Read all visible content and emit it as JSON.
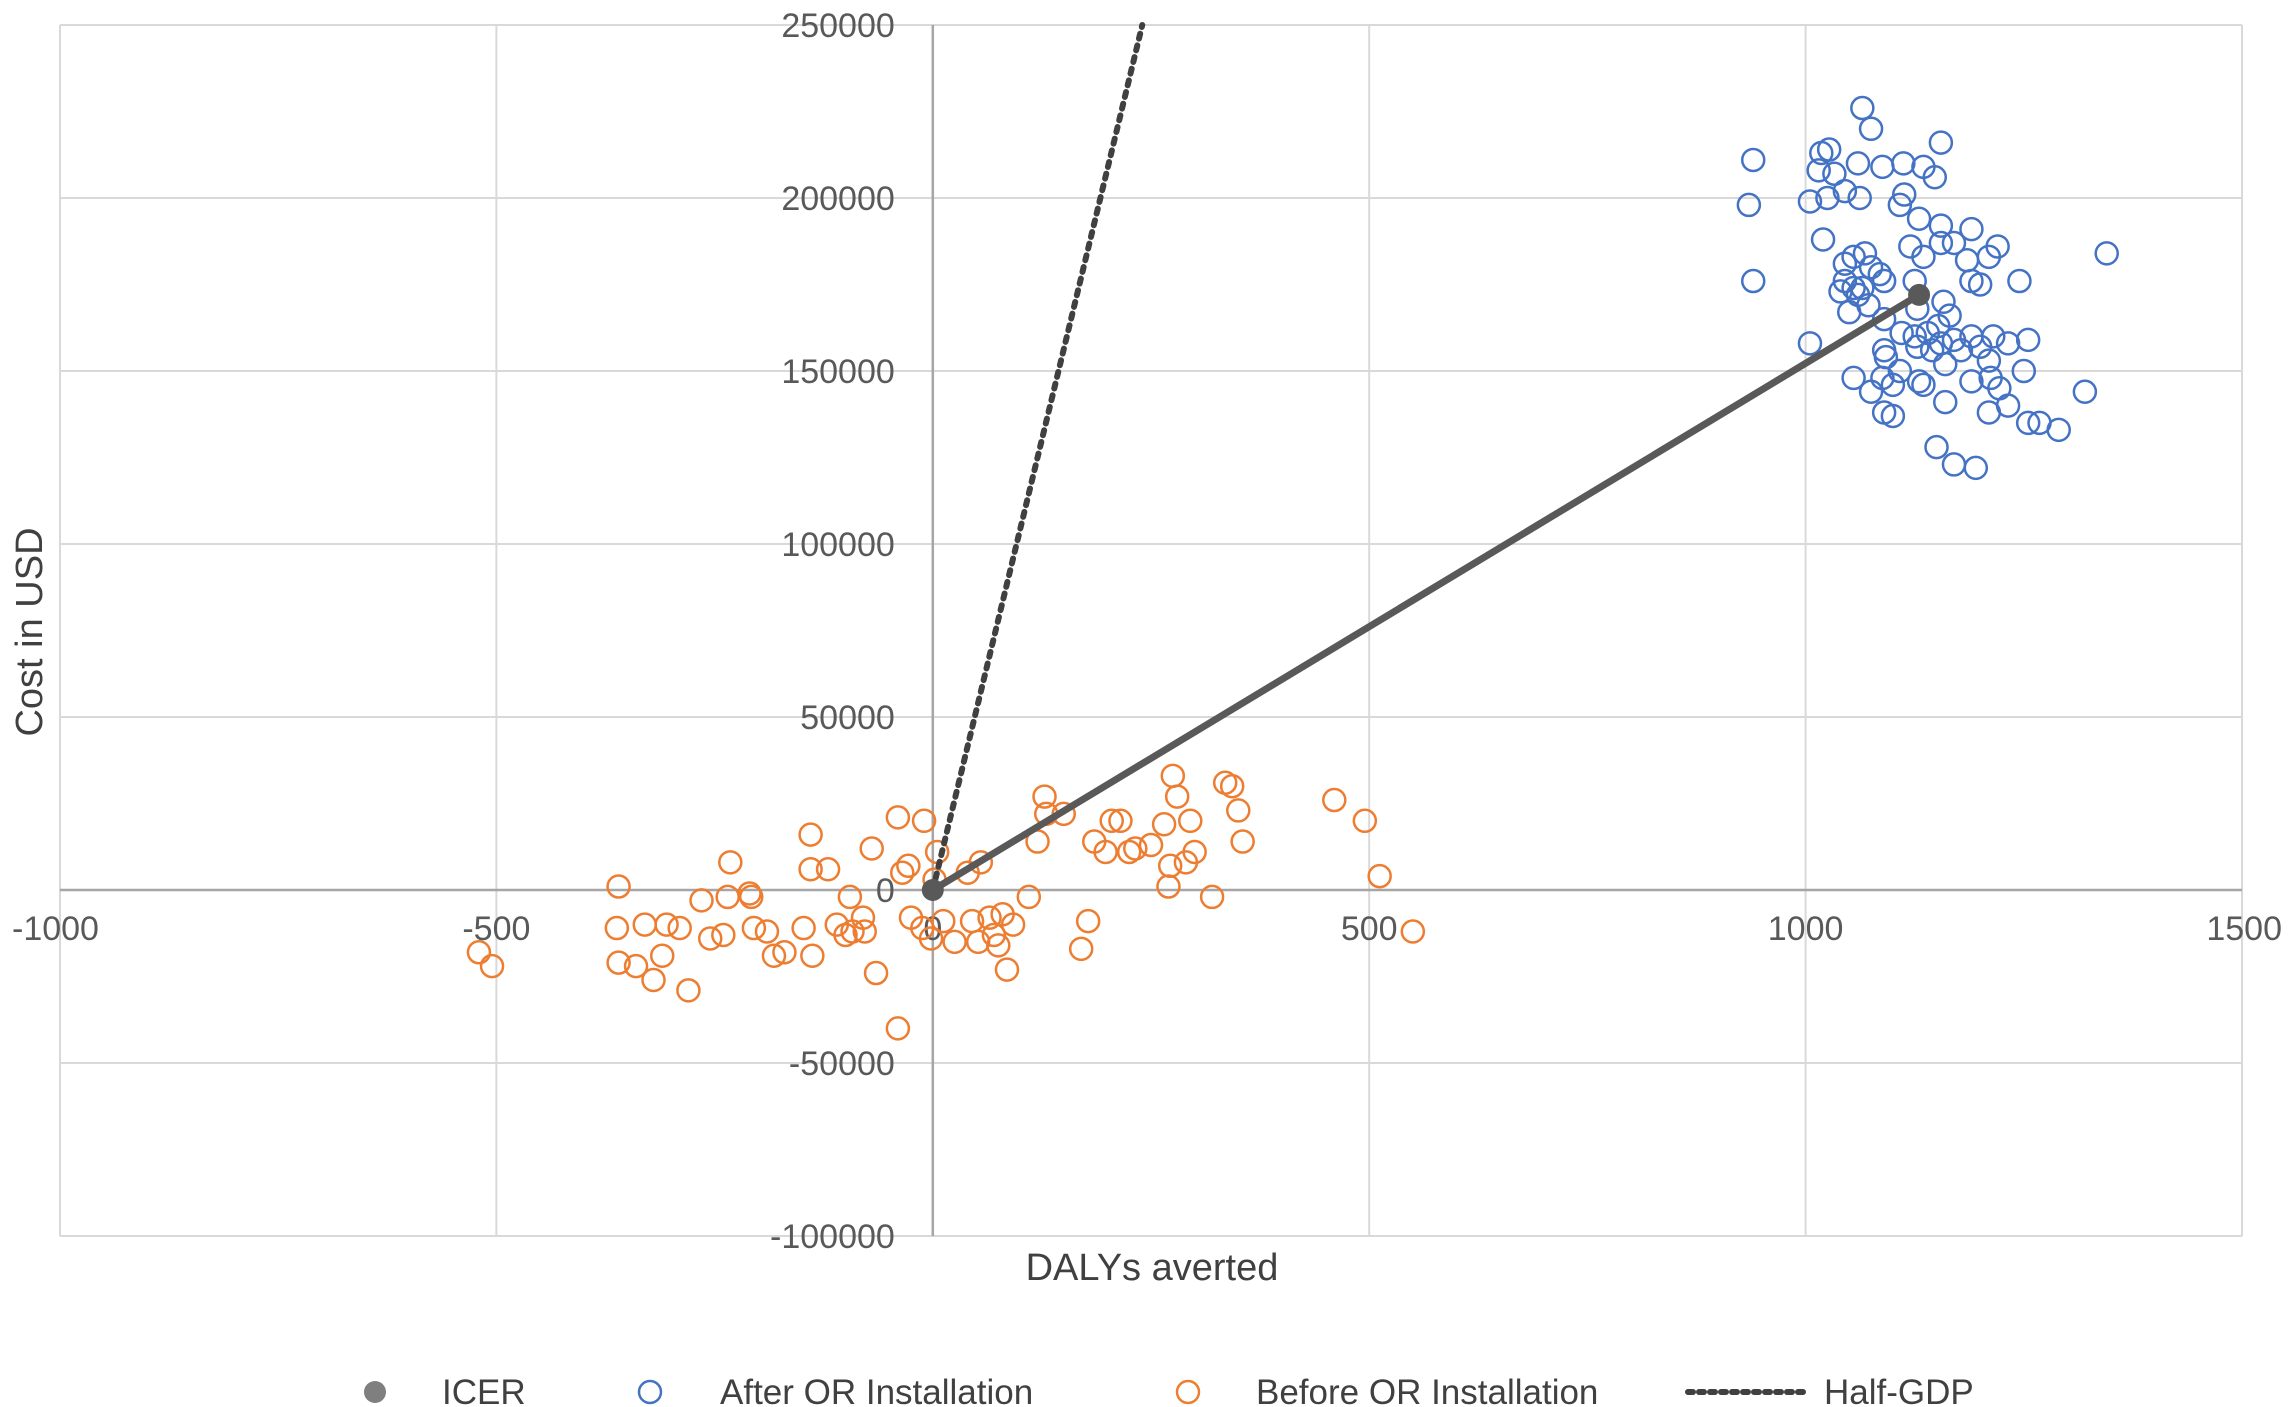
{
  "chart_data": {
    "type": "scatter",
    "title": "",
    "xlabel": "DALYs averted",
    "ylabel": "Cost in USD",
    "xlim": [
      -1000,
      1500
    ],
    "ylim": [
      -100000,
      250000
    ],
    "x_ticks": [
      -1000,
      -500,
      0,
      500,
      1000,
      1500
    ],
    "y_ticks": [
      -100000,
      -50000,
      0,
      50000,
      100000,
      150000,
      200000,
      250000
    ],
    "x_tick_labels": [
      "-1000",
      "-500",
      "0",
      "500",
      "1000",
      "1500"
    ],
    "y_tick_labels": [
      "-100000",
      "-50000",
      "0",
      "50000",
      "100000",
      "150000",
      "200000",
      "250000"
    ],
    "grid": true,
    "legend_position": "bottom",
    "legend": [
      {
        "label": "ICER",
        "marker": "filled-circle",
        "color": "#7f7f7f"
      },
      {
        "label": "After OR Installation",
        "marker": "open-circle",
        "color": "#4472c4"
      },
      {
        "label": "Before OR Installation",
        "marker": "open-circle",
        "color": "#ed7d31"
      },
      {
        "label": "Half-GDP",
        "marker": "dotted-line",
        "color": "#404040"
      }
    ],
    "series": [
      {
        "name": "After OR Installation",
        "color": "#4472c4",
        "marker": "open-circle",
        "points": [
          [
            1065,
            226000
          ],
          [
            1075,
            220000
          ],
          [
            1027,
            214000
          ],
          [
            1018,
            213000
          ],
          [
            1155,
            216000
          ],
          [
            940,
            211000
          ],
          [
            1015,
            208000
          ],
          [
            1033,
            207000
          ],
          [
            1060,
            210000
          ],
          [
            1088,
            209000
          ],
          [
            1112,
            210000
          ],
          [
            1135,
            209000
          ],
          [
            1148,
            206000
          ],
          [
            1045,
            202000
          ],
          [
            1062,
            200000
          ],
          [
            1113,
            201000
          ],
          [
            1108,
            198000
          ],
          [
            1005,
            199000
          ],
          [
            935,
            198000
          ],
          [
            1025,
            200000
          ],
          [
            1130,
            194000
          ],
          [
            1155,
            192000
          ],
          [
            1190,
            191000
          ],
          [
            1170,
            187000
          ],
          [
            1155,
            187000
          ],
          [
            1220,
            186000
          ],
          [
            1120,
            186000
          ],
          [
            1068,
            184000
          ],
          [
            1055,
            183000
          ],
          [
            1135,
            183000
          ],
          [
            1075,
            180000
          ],
          [
            1210,
            183000
          ],
          [
            1185,
            182000
          ],
          [
            1345,
            184000
          ],
          [
            1045,
            181000
          ],
          [
            1085,
            178000
          ],
          [
            1090,
            176000
          ],
          [
            1125,
            176000
          ],
          [
            1045,
            176000
          ],
          [
            1065,
            174000
          ],
          [
            1190,
            176000
          ],
          [
            1200,
            175000
          ],
          [
            1245,
            176000
          ],
          [
            1055,
            174000
          ],
          [
            1040,
            173000
          ],
          [
            1060,
            172000
          ],
          [
            1158,
            170000
          ],
          [
            1050,
            167000
          ],
          [
            1072,
            169000
          ],
          [
            1128,
            168000
          ],
          [
            1090,
            165000
          ],
          [
            1165,
            166000
          ],
          [
            1152,
            163000
          ],
          [
            1110,
            161000
          ],
          [
            1125,
            160000
          ],
          [
            1140,
            161000
          ],
          [
            1155,
            158000
          ],
          [
            1170,
            159000
          ],
          [
            1190,
            160000
          ],
          [
            1215,
            160000
          ],
          [
            1232,
            158000
          ],
          [
            1255,
            159000
          ],
          [
            1090,
            156000
          ],
          [
            1128,
            157000
          ],
          [
            1145,
            156000
          ],
          [
            1200,
            157000
          ],
          [
            1005,
            158000
          ],
          [
            1092,
            154000
          ],
          [
            1160,
            152000
          ],
          [
            1178,
            156000
          ],
          [
            1210,
            153000
          ],
          [
            1088,
            148000
          ],
          [
            1108,
            150000
          ],
          [
            1130,
            147000
          ],
          [
            1055,
            148000
          ],
          [
            1100,
            146000
          ],
          [
            1190,
            147000
          ],
          [
            1212,
            148000
          ],
          [
            1250,
            150000
          ],
          [
            1075,
            144000
          ],
          [
            1135,
            146000
          ],
          [
            1222,
            145000
          ],
          [
            1320,
            144000
          ],
          [
            1160,
            141000
          ],
          [
            1090,
            138000
          ],
          [
            1100,
            137000
          ],
          [
            1210,
            138000
          ],
          [
            1232,
            140000
          ],
          [
            1255,
            135000
          ],
          [
            1268,
            135000
          ],
          [
            1290,
            133000
          ],
          [
            1150,
            128000
          ],
          [
            1170,
            123000
          ],
          [
            1195,
            122000
          ],
          [
            940,
            176000
          ],
          [
            1020,
            188000
          ]
        ]
      },
      {
        "name": "Before OR Installation",
        "color": "#ed7d31",
        "marker": "open-circle",
        "points": [
          [
            -520,
            -18000
          ],
          [
            -505,
            -22000
          ],
          [
            -360,
            1000
          ],
          [
            -330,
            -10000
          ],
          [
            -305,
            -10000
          ],
          [
            -290,
            -11000
          ],
          [
            -362,
            -11000
          ],
          [
            -360,
            -21000
          ],
          [
            -340,
            -22000
          ],
          [
            -320,
            -26000
          ],
          [
            -310,
            -19000
          ],
          [
            -280,
            -29000
          ],
          [
            -255,
            -14000
          ],
          [
            -240,
            -13000
          ],
          [
            -265,
            -3000
          ],
          [
            -235,
            -2000
          ],
          [
            -210,
            -1000
          ],
          [
            -208,
            -2000
          ],
          [
            -232,
            8000
          ],
          [
            -205,
            -11000
          ],
          [
            -190,
            -12000
          ],
          [
            -182,
            -19000
          ],
          [
            -170,
            -18000
          ],
          [
            -148,
            -11000
          ],
          [
            -138,
            -19000
          ],
          [
            -140,
            6000
          ],
          [
            -140,
            16000
          ],
          [
            -120,
            6000
          ],
          [
            -110,
            -10000
          ],
          [
            -100,
            -13000
          ],
          [
            -95,
            -2000
          ],
          [
            -92,
            -12000
          ],
          [
            -80,
            -8000
          ],
          [
            -78,
            -12000
          ],
          [
            -70,
            12000
          ],
          [
            -65,
            -24000
          ],
          [
            -40,
            21000
          ],
          [
            -28,
            7000
          ],
          [
            -10,
            20000
          ],
          [
            -35,
            5000
          ],
          [
            -25,
            -8000
          ],
          [
            -12,
            -11000
          ],
          [
            -2,
            -14000
          ],
          [
            -40,
            -40000
          ],
          [
            5,
            11000
          ],
          [
            2,
            3000
          ],
          [
            12,
            -9000
          ],
          [
            25,
            -15000
          ],
          [
            40,
            5000
          ],
          [
            45,
            -9000
          ],
          [
            52,
            -15000
          ],
          [
            55,
            8000
          ],
          [
            70,
            -13000
          ],
          [
            75,
            -16000
          ],
          [
            80,
            -7000
          ],
          [
            85,
            -23000
          ],
          [
            110,
            -2000
          ],
          [
            120,
            14000
          ],
          [
            128,
            27000
          ],
          [
            130,
            22000
          ],
          [
            150,
            22000
          ],
          [
            170,
            -17000
          ],
          [
            178,
            -9000
          ],
          [
            185,
            14000
          ],
          [
            198,
            11000
          ],
          [
            205,
            20000
          ],
          [
            215,
            20000
          ],
          [
            225,
            11000
          ],
          [
            232,
            12000
          ],
          [
            250,
            13000
          ],
          [
            265,
            19000
          ],
          [
            272,
            7000
          ],
          [
            280,
            27000
          ],
          [
            270,
            1000
          ],
          [
            290,
            8000
          ],
          [
            295,
            20000
          ],
          [
            300,
            11000
          ],
          [
            320,
            -2000
          ],
          [
            335,
            31000
          ],
          [
            343,
            30000
          ],
          [
            350,
            23000
          ],
          [
            355,
            14000
          ],
          [
            460,
            26000
          ],
          [
            495,
            20000
          ],
          [
            512,
            4000
          ],
          [
            550,
            -12000
          ],
          [
            275,
            33000
          ],
          [
            92,
            -10000
          ],
          [
            65,
            -8000
          ]
        ]
      },
      {
        "name": "ICER",
        "color": "#7f7f7f",
        "marker": "filled-circle",
        "points": [
          [
            0,
            0
          ],
          [
            1130,
            172000
          ]
        ]
      },
      {
        "name": "Half-GDP",
        "color": "#404040",
        "marker": "dotted-line",
        "points": [
          [
            0,
            0
          ],
          [
            240,
            250000
          ]
        ]
      }
    ]
  }
}
